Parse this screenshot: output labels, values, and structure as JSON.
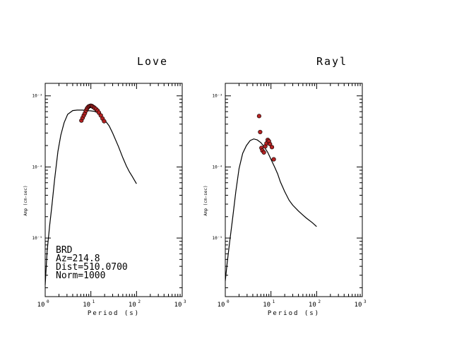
{
  "chart_data": [
    {
      "type": "line",
      "panel": "left",
      "title": "Love",
      "xlabel": "Period (s)",
      "ylabel": "Amp (cm-sec)",
      "x_scale": "log",
      "y_scale": "log",
      "xlim": [
        1,
        1000
      ],
      "ylim": [
        1.5e-06,
        0.0015
      ],
      "x_ticks": [
        {
          "base": "10",
          "exp": "0"
        },
        {
          "base": "10",
          "exp": "1"
        },
        {
          "base": "10",
          "exp": "2"
        },
        {
          "base": "10",
          "exp": "3"
        }
      ],
      "y_ticks": [
        {
          "value": 0.001,
          "label": "10⁻³"
        },
        {
          "value": 0.0001,
          "label": "10⁻⁴"
        },
        {
          "value": 1e-05,
          "label": "10⁻⁵"
        }
      ],
      "info_lines": [
        "BRD",
        "Az=214.8",
        "Dist=510.0700",
        "Norm=1000"
      ],
      "series": [
        {
          "kind": "line",
          "color": "#000000",
          "x": [
            1,
            1.1,
            1.25,
            1.4,
            1.6,
            1.9,
            2.2,
            2.6,
            3.1,
            4,
            5,
            6.5,
            8,
            10,
            12,
            14,
            17,
            20,
            25,
            30,
            40,
            50,
            60,
            70,
            80,
            100
          ],
          "y": [
            2.2e-06,
            6.5e-06,
            1.5e-05,
            2.8e-05,
            6.5e-05,
            0.000165,
            0.00028,
            0.00042,
            0.00055,
            0.00062,
            0.00063,
            0.00063,
            0.00062,
            0.000615,
            0.000605,
            0.00058,
            0.00052,
            0.00046,
            0.00038,
            0.0003,
            0.000195,
            0.000135,
            0.000103,
            8.5e-05,
            7.4e-05,
            5.8e-05
          ]
        },
        {
          "kind": "scatter",
          "color": "#b22222",
          "x": [
            6.2,
            6.6,
            7,
            7.4,
            7.8,
            8.2,
            8.6,
            9,
            9.5,
            10,
            10.5,
            11,
            11.6,
            12.2,
            13,
            14,
            15,
            16.5,
            18,
            19.5
          ],
          "y": [
            0.00045,
            0.00049,
            0.00053,
            0.00057,
            0.00062,
            0.00066,
            0.00069,
            0.00071,
            0.00072,
            0.000725,
            0.00072,
            0.000705,
            0.00069,
            0.00067,
            0.00065,
            0.00062,
            0.00058,
            0.00053,
            0.00048,
            0.00044
          ]
        }
      ]
    },
    {
      "type": "line",
      "panel": "right",
      "title": "Rayl",
      "xlabel": "Period (s)",
      "ylabel": "Amp (cm-sec)",
      "x_scale": "log",
      "y_scale": "log",
      "xlim": [
        1,
        1000
      ],
      "ylim": [
        1.5e-06,
        0.0015
      ],
      "x_ticks": [
        {
          "base": "10",
          "exp": "0"
        },
        {
          "base": "10",
          "exp": "1"
        },
        {
          "base": "10",
          "exp": "2"
        },
        {
          "base": "10",
          "exp": "3"
        }
      ],
      "y_ticks": [
        {
          "value": 0.001,
          "label": "10⁻³"
        },
        {
          "value": 0.0001,
          "label": "10⁻⁴"
        },
        {
          "value": 1e-05,
          "label": "10⁻⁵"
        }
      ],
      "series": [
        {
          "kind": "line",
          "color": "#000000",
          "x": [
            1,
            1.1,
            1.25,
            1.45,
            1.7,
            2,
            2.4,
            2.9,
            3.5,
            4.2,
            5,
            6,
            7,
            8.5,
            10,
            12,
            14,
            16,
            20,
            25,
            30,
            40,
            50,
            60,
            80,
            100
          ],
          "y": [
            2.5e-06,
            4.5e-06,
            9e-06,
            1.9e-05,
            4.5e-05,
            9.5e-05,
            0.000155,
            0.0002,
            0.000235,
            0.000248,
            0.00024,
            0.00022,
            0.000195,
            0.00016,
            0.000128,
            0.0001,
            8e-05,
            6.2e-05,
            4.5e-05,
            3.4e-05,
            2.9e-05,
            2.4e-05,
            2.1e-05,
            1.9e-05,
            1.65e-05,
            1.45e-05
          ]
        },
        {
          "kind": "scatter",
          "color": "#b22222",
          "x": [
            5.5,
            5.8,
            6.2,
            6.5,
            7,
            7.5,
            8,
            8.5,
            9,
            9.5,
            10.5,
            11.5
          ],
          "y": [
            0.00052,
            0.00031,
            0.000185,
            0.00017,
            0.00016,
            0.000195,
            0.000215,
            0.00024,
            0.00023,
            0.00021,
            0.00019,
            0.000128
          ]
        }
      ]
    }
  ]
}
